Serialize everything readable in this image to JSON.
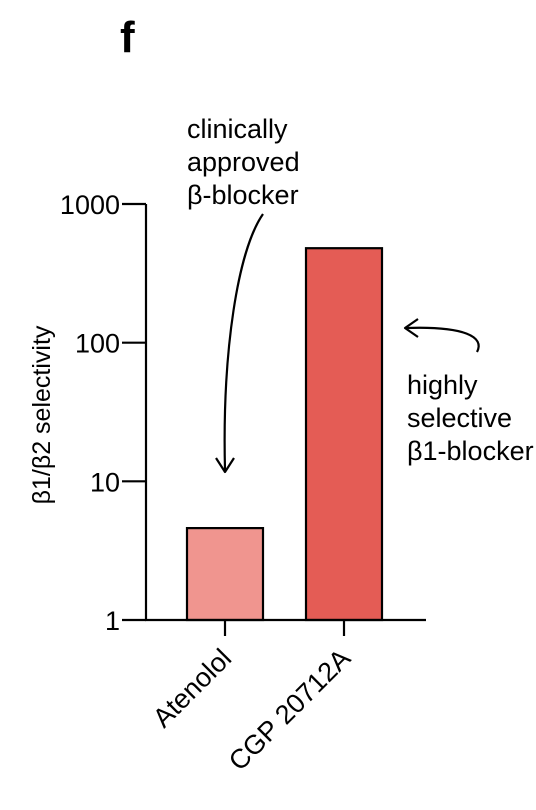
{
  "panel_label": "f",
  "chart_data": {
    "type": "bar",
    "categories": [
      "Atenolol",
      "CGP 20712A"
    ],
    "values": [
      4.6,
      480
    ],
    "colors": [
      "#f0958f",
      "#e45c55"
    ],
    "ylabel": "β1/β2 selectivity",
    "yscale": "log",
    "ylim": [
      1,
      1000
    ],
    "yticks": [
      1,
      10,
      100,
      1000
    ],
    "ytick_labels": [
      "1",
      "10",
      "100",
      "1000"
    ],
    "grid": false,
    "annotations": [
      {
        "lines": [
          "clinically",
          "approved",
          "β-blocker"
        ],
        "points_to": "Atenolol"
      },
      {
        "lines": [
          "highly",
          "selective",
          "β1-blocker"
        ],
        "points_to": "CGP 20712A"
      }
    ]
  }
}
